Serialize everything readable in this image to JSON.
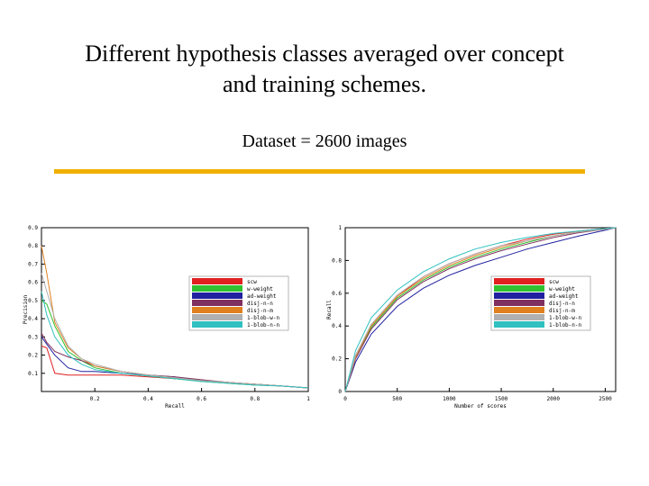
{
  "slide": {
    "title_line1": "Different hypothesis classes averaged over concept",
    "title_line2": "and training schemes.",
    "subtitle": "Dataset = 2600 images",
    "rule_color": "#f0b000"
  },
  "chart_data": [
    {
      "type": "line",
      "title": "",
      "xlabel": "Recall",
      "ylabel": "Precision",
      "xlim": [
        0,
        1
      ],
      "ylim": [
        0,
        0.9
      ],
      "x_ticks": [
        "0.2",
        "0.4",
        "0.6",
        "0.8",
        "1"
      ],
      "x_tick_values": [
        0.2,
        0.4,
        0.6,
        0.8,
        1.0
      ],
      "y_ticks": [
        "0.9",
        "0.8",
        "0.7",
        "0.6",
        "0.5",
        "0.4",
        "0.3",
        "0.2",
        "0.1"
      ],
      "y_tick_values": [
        0.9,
        0.8,
        0.7,
        0.6,
        0.5,
        0.4,
        0.3,
        0.2,
        0.1
      ],
      "legend_position": "center-right",
      "grid": false,
      "x": [
        0.0,
        0.02,
        0.05,
        0.1,
        0.15,
        0.2,
        0.3,
        0.4,
        0.5,
        0.6,
        0.7,
        0.8,
        0.9,
        1.0
      ],
      "series": [
        {
          "name": "scw",
          "color": "#e02020",
          "values": [
            0.25,
            0.24,
            0.1,
            0.09,
            0.09,
            0.09,
            0.09,
            0.08,
            0.07,
            0.06,
            0.05,
            0.04,
            0.03,
            0.02
          ]
        },
        {
          "name": "w-weight",
          "color": "#30c030",
          "values": [
            0.5,
            0.48,
            0.36,
            0.22,
            0.17,
            0.13,
            0.1,
            0.085,
            0.07,
            0.055,
            0.045,
            0.035,
            0.03,
            0.02
          ]
        },
        {
          "name": "ad-weight",
          "color": "#2020a0",
          "values": [
            0.3,
            0.26,
            0.2,
            0.13,
            0.11,
            0.11,
            0.1,
            0.09,
            0.08,
            0.06,
            0.05,
            0.04,
            0.03,
            0.02
          ]
        },
        {
          "name": "disj-n-n",
          "color": "#803060",
          "values": [
            0.32,
            0.27,
            0.22,
            0.19,
            0.17,
            0.14,
            0.11,
            0.09,
            0.08,
            0.065,
            0.05,
            0.04,
            0.03,
            0.02
          ]
        },
        {
          "name": "disj-n-m",
          "color": "#e08020",
          "values": [
            0.8,
            0.65,
            0.38,
            0.24,
            0.18,
            0.14,
            0.11,
            0.09,
            0.075,
            0.06,
            0.05,
            0.04,
            0.03,
            0.02
          ]
        },
        {
          "name": "1-blob-w-n",
          "color": "#b0b0b0",
          "values": [
            0.65,
            0.55,
            0.4,
            0.25,
            0.18,
            0.15,
            0.11,
            0.09,
            0.075,
            0.06,
            0.05,
            0.04,
            0.03,
            0.02
          ]
        },
        {
          "name": "1-blob-n-n",
          "color": "#30c0c0",
          "values": [
            0.55,
            0.42,
            0.3,
            0.2,
            0.15,
            0.12,
            0.1,
            0.085,
            0.07,
            0.055,
            0.045,
            0.035,
            0.03,
            0.02
          ]
        }
      ]
    },
    {
      "type": "line",
      "title": "",
      "xlabel": "Number of scores",
      "ylabel": "Recall",
      "xlim": [
        0,
        2600
      ],
      "ylim": [
        0,
        1
      ],
      "x_ticks": [
        "0",
        "500",
        "1000",
        "1500",
        "2000",
        "2500"
      ],
      "x_tick_values": [
        0,
        500,
        1000,
        1500,
        2000,
        2500
      ],
      "y_ticks": [
        "1",
        "0.8",
        "0.6",
        "0.4",
        "0.2",
        "0"
      ],
      "y_tick_values": [
        1.0,
        0.8,
        0.6,
        0.4,
        0.2,
        0.0
      ],
      "legend_position": "center-right",
      "grid": false,
      "x": [
        0,
        100,
        250,
        500,
        750,
        1000,
        1250,
        1500,
        1750,
        2000,
        2250,
        2500,
        2600
      ],
      "series": [
        {
          "name": "scw",
          "color": "#e02020",
          "values": [
            0.0,
            0.22,
            0.4,
            0.58,
            0.7,
            0.78,
            0.84,
            0.89,
            0.93,
            0.96,
            0.98,
            0.995,
            1.0
          ]
        },
        {
          "name": "w-weight",
          "color": "#30c030",
          "values": [
            0.0,
            0.21,
            0.39,
            0.57,
            0.68,
            0.76,
            0.82,
            0.87,
            0.91,
            0.95,
            0.975,
            0.99,
            1.0
          ]
        },
        {
          "name": "ad-weight",
          "color": "#2020a0",
          "values": [
            0.0,
            0.18,
            0.35,
            0.52,
            0.63,
            0.71,
            0.77,
            0.82,
            0.87,
            0.91,
            0.95,
            0.985,
            1.0
          ]
        },
        {
          "name": "disj-n-n",
          "color": "#803060",
          "values": [
            0.0,
            0.2,
            0.38,
            0.56,
            0.67,
            0.75,
            0.81,
            0.86,
            0.9,
            0.94,
            0.97,
            0.99,
            1.0
          ]
        },
        {
          "name": "disj-n-m",
          "color": "#e08020",
          "values": [
            0.0,
            0.21,
            0.4,
            0.58,
            0.69,
            0.77,
            0.83,
            0.88,
            0.92,
            0.95,
            0.975,
            0.99,
            1.0
          ]
        },
        {
          "name": "1-blob-w-n",
          "color": "#b0b0b0",
          "values": [
            0.0,
            0.22,
            0.41,
            0.59,
            0.7,
            0.78,
            0.84,
            0.89,
            0.92,
            0.95,
            0.975,
            0.99,
            1.0
          ]
        },
        {
          "name": "1-blob-n-n",
          "color": "#30c0c0",
          "values": [
            0.0,
            0.25,
            0.45,
            0.62,
            0.73,
            0.81,
            0.87,
            0.91,
            0.94,
            0.965,
            0.98,
            0.995,
            1.0
          ]
        }
      ]
    }
  ]
}
